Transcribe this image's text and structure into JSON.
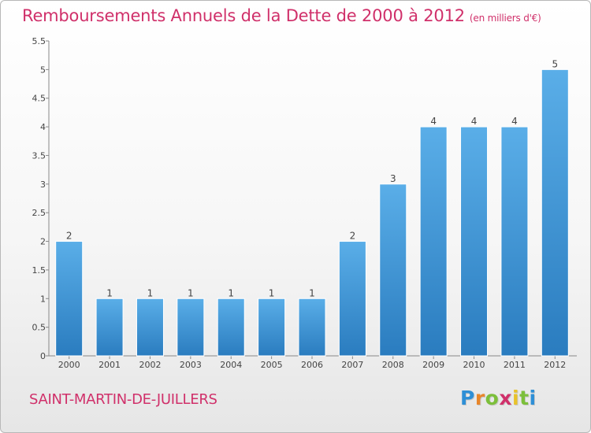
{
  "title": "Remboursements Annuels de la Dette de 2000 à 2012",
  "subtitle": "(en milliers d'€)",
  "commune": "SAINT-MARTIN-DE-JUILLERS",
  "logo": {
    "letters": [
      "P",
      "r",
      "o",
      "x",
      "i",
      "t",
      "i"
    ],
    "colors": [
      "#2e8fd6",
      "#e8862a",
      "#7cbf3a",
      "#d0306a",
      "#e8c22a",
      "#7cbf3a",
      "#2e8fd6"
    ]
  },
  "colors": {
    "bar_top": "#5aaee8",
    "bar_bottom": "#2a7cbf",
    "title": "#d0306a",
    "axis": "#888888"
  },
  "chart_data": {
    "type": "bar",
    "title": "Remboursements Annuels de la Dette de 2000 à 2012",
    "subtitle": "(en milliers d'€)",
    "xlabel": "",
    "ylabel": "",
    "categories": [
      "2000",
      "2001",
      "2002",
      "2003",
      "2004",
      "2005",
      "2006",
      "2007",
      "2008",
      "2009",
      "2010",
      "2011",
      "2012"
    ],
    "values": [
      2,
      1,
      1,
      1,
      1,
      1,
      1,
      2,
      3,
      4,
      4,
      4,
      5
    ],
    "data_labels": [
      "2",
      "1",
      "1",
      "1",
      "1",
      "1",
      "1",
      "2",
      "3",
      "4",
      "4",
      "4",
      "5"
    ],
    "ylim": [
      0,
      5.5
    ],
    "yticks": [
      0,
      0.5,
      1,
      1.5,
      2,
      2.5,
      3,
      3.5,
      4,
      4.5,
      5,
      5.5
    ],
    "ytick_labels": [
      "0",
      "0.5",
      "1",
      "1.5",
      "2",
      "2.5",
      "3",
      "3.5",
      "4",
      "4.5",
      "5",
      "5.5"
    ],
    "grid": false,
    "legend": "none"
  }
}
